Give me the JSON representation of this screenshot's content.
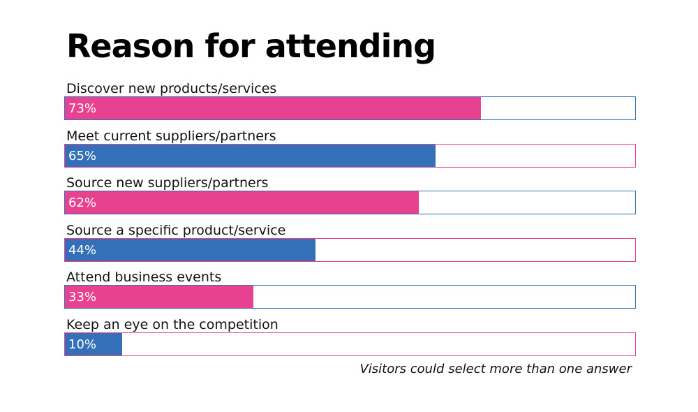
{
  "colors": {
    "pink": "#E8418F",
    "blue": "#3470B8"
  },
  "chart_data": {
    "type": "bar",
    "orientation": "horizontal",
    "title": "Reason for attending",
    "categories": [
      "Discover new products/services",
      "Meet current suppliers/partners",
      "Source new suppliers/partners",
      "Source a specific product/service",
      "Attend business events",
      "Keep an eye on the competition"
    ],
    "values": [
      73,
      65,
      62,
      44,
      33,
      10
    ],
    "value_labels": [
      "73%",
      "65%",
      "62%",
      "44%",
      "33%",
      "10%"
    ],
    "bar_colors": [
      "#E8418F",
      "#3470B8",
      "#E8418F",
      "#3470B8",
      "#E8418F",
      "#3470B8"
    ],
    "border_colors": [
      "#3470B8",
      "#E8418F",
      "#3470B8",
      "#E8418F",
      "#3470B8",
      "#E8418F"
    ],
    "xlim": [
      0,
      100
    ],
    "grid": false,
    "note": "Visitors could select more than one answer"
  }
}
